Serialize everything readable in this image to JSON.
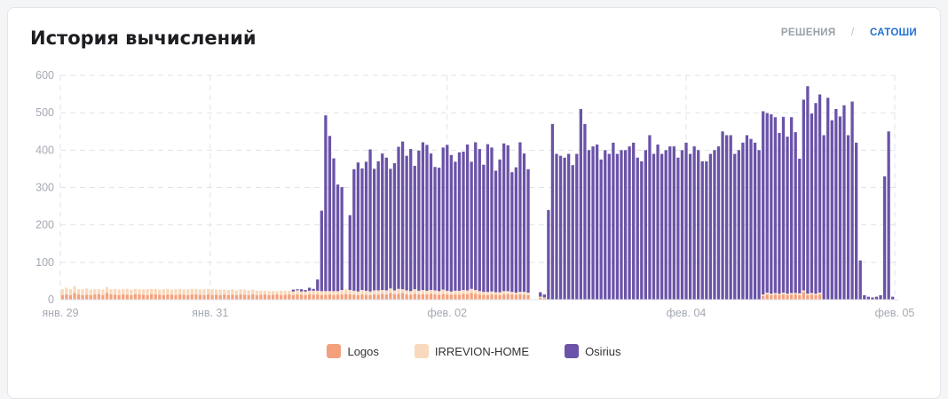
{
  "header": {
    "title": "История вычислений"
  },
  "toggle": {
    "left": "РЕШЕНИЯ",
    "separator": "/",
    "right": "САТОШИ"
  },
  "colors": {
    "logos": "#f4a07c",
    "irrevion": "#f8d9bd",
    "osirius": "#6a53a8",
    "grid": "#e1e3e8",
    "axis_text": "#a4a9b3"
  },
  "chart_data": {
    "type": "bar",
    "stacked": true,
    "ylim": [
      0,
      600
    ],
    "yticks": [
      0,
      100,
      200,
      300,
      400,
      500,
      600
    ],
    "xticks": [
      "янв. 29",
      "янв. 31",
      "фев. 02",
      "фев. 04",
      "фев. 05"
    ],
    "grid": true,
    "legend_position": "bottom",
    "series": [
      {
        "name": "Logos",
        "color": "#f4a07c",
        "values": [
          12,
          14,
          12,
          18,
          14,
          12,
          13,
          12,
          14,
          15,
          12,
          18,
          14,
          13,
          12,
          14,
          13,
          12,
          15,
          14,
          13,
          12,
          15,
          14,
          13,
          12,
          14,
          13,
          12,
          14,
          13,
          12,
          14,
          14,
          13,
          12,
          14,
          12,
          13,
          12,
          14,
          12,
          13,
          12,
          14,
          13,
          12,
          14,
          12,
          13,
          14,
          12,
          13,
          14,
          12,
          13,
          14,
          12,
          14,
          13,
          12,
          14,
          13,
          14,
          12,
          13,
          14,
          12,
          13,
          14,
          15,
          14,
          13,
          12,
          14,
          13,
          12,
          14,
          13,
          16,
          14,
          18,
          15,
          16,
          18,
          14,
          13,
          16,
          14,
          15,
          14,
          16,
          14,
          13,
          15,
          14,
          13,
          14,
          13,
          16,
          15,
          18,
          16,
          14,
          13,
          12,
          14,
          13,
          12,
          14,
          15,
          14,
          13,
          14,
          13,
          12,
          0,
          0,
          5,
          4,
          0,
          0,
          0,
          0,
          0,
          0,
          0,
          0,
          0,
          0,
          0,
          0,
          0,
          0,
          0,
          0,
          0,
          0,
          0,
          0,
          0,
          0,
          0,
          0,
          0,
          0,
          0,
          0,
          0,
          0,
          0,
          0,
          0,
          0,
          0,
          0,
          0,
          0,
          0,
          0,
          0,
          0,
          0,
          0,
          0,
          0,
          0,
          0,
          0,
          0,
          0,
          0,
          0,
          10,
          14,
          12,
          13,
          12,
          14,
          12,
          13,
          14,
          12,
          20,
          12,
          13,
          12,
          14,
          0,
          0,
          0,
          0,
          0,
          0,
          0,
          0,
          0,
          0,
          0,
          0
        ]
      },
      {
        "name": "IRREVION-HOME",
        "color": "#f8d9bd",
        "values": [
          16,
          18,
          16,
          18,
          14,
          16,
          17,
          15,
          14,
          13,
          15,
          16,
          14,
          16,
          15,
          14,
          16,
          15,
          14,
          14,
          15,
          16,
          14,
          15,
          14,
          16,
          15,
          14,
          16,
          15,
          14,
          16,
          15,
          15,
          14,
          16,
          15,
          16,
          14,
          15,
          13,
          14,
          15,
          13,
          14,
          14,
          13,
          13,
          12,
          11,
          10,
          11,
          10,
          9,
          12,
          11,
          10,
          10,
          11,
          9,
          10,
          10,
          11,
          10,
          11,
          10,
          9,
          11,
          10,
          12,
          13,
          12,
          11,
          10,
          12,
          11,
          10,
          11,
          12,
          10,
          11,
          12,
          10,
          13,
          10,
          11,
          10,
          12,
          10,
          11,
          10,
          10,
          11,
          10,
          12,
          10,
          9,
          10,
          11,
          10,
          10,
          11,
          10,
          9,
          8,
          9,
          8,
          7,
          8,
          9,
          8,
          7,
          6,
          7,
          8,
          7,
          0,
          0,
          3,
          2,
          0,
          0,
          0,
          0,
          0,
          0,
          0,
          0,
          0,
          0,
          0,
          0,
          0,
          0,
          0,
          0,
          0,
          0,
          0,
          0,
          0,
          0,
          0,
          0,
          0,
          0,
          0,
          0,
          0,
          0,
          0,
          0,
          0,
          0,
          0,
          0,
          0,
          0,
          0,
          0,
          0,
          0,
          0,
          0,
          0,
          0,
          0,
          0,
          0,
          0,
          0,
          0,
          0,
          4,
          5,
          4,
          5,
          4,
          5,
          4,
          5,
          4,
          5,
          5,
          4,
          5,
          4,
          5,
          0,
          0,
          0,
          0,
          0,
          0,
          0,
          0,
          0,
          0,
          0,
          0
        ]
      },
      {
        "name": "Osirius",
        "color": "#6a53a8",
        "values": [
          0,
          0,
          0,
          0,
          0,
          0,
          0,
          0,
          0,
          0,
          0,
          0,
          0,
          0,
          0,
          0,
          0,
          0,
          0,
          0,
          0,
          0,
          0,
          0,
          0,
          0,
          0,
          0,
          0,
          0,
          0,
          0,
          0,
          0,
          0,
          0,
          0,
          0,
          0,
          0,
          0,
          0,
          0,
          0,
          0,
          0,
          0,
          0,
          0,
          0,
          0,
          0,
          0,
          0,
          0,
          0,
          0,
          5,
          3,
          6,
          4,
          8,
          5,
          30,
          215,
          470,
          415,
          355,
          285,
          275,
          0,
          200,
          325,
          345,
          325,
          345,
          380,
          325,
          345,
          365,
          355,
          320,
          340,
          380,
          395,
          360,
          380,
          330,
          375,
          395,
          390,
          365,
          330,
          330,
          380,
          390,
          365,
          345,
          370,
          370,
          390,
          340,
          395,
          380,
          340,
          395,
          385,
          325,
          355,
          395,
          390,
          320,
          335,
          400,
          370,
          330,
          0,
          0,
          12,
          8,
          240,
          470,
          390,
          385,
          380,
          390,
          360,
          390,
          510,
          470,
          400,
          410,
          415,
          375,
          400,
          390,
          420,
          390,
          400,
          400,
          410,
          420,
          380,
          370,
          400,
          440,
          390,
          415,
          390,
          400,
          410,
          410,
          380,
          400,
          420,
          390,
          410,
          400,
          370,
          370,
          390,
          400,
          410,
          450,
          440,
          440,
          390,
          400,
          420,
          440,
          430,
          420,
          400,
          490,
          480,
          480,
          470,
          430,
          470,
          420,
          470,
          430,
          360,
          510,
          555,
          480,
          510,
          530,
          440,
          540,
          480,
          510,
          490,
          520,
          440,
          530,
          420,
          105,
          12,
          8,
          6,
          8,
          12,
          330,
          450,
          8
        ]
      },
      {
        "name": "",
        "color": "#000000",
        "values": []
      }
    ]
  },
  "legend": {
    "items": [
      {
        "label": "Logos",
        "color": "#f4a07c"
      },
      {
        "label": "IRREVION-HOME",
        "color": "#f8d9bd"
      },
      {
        "label": "Osirius",
        "color": "#6a53a8"
      }
    ]
  }
}
